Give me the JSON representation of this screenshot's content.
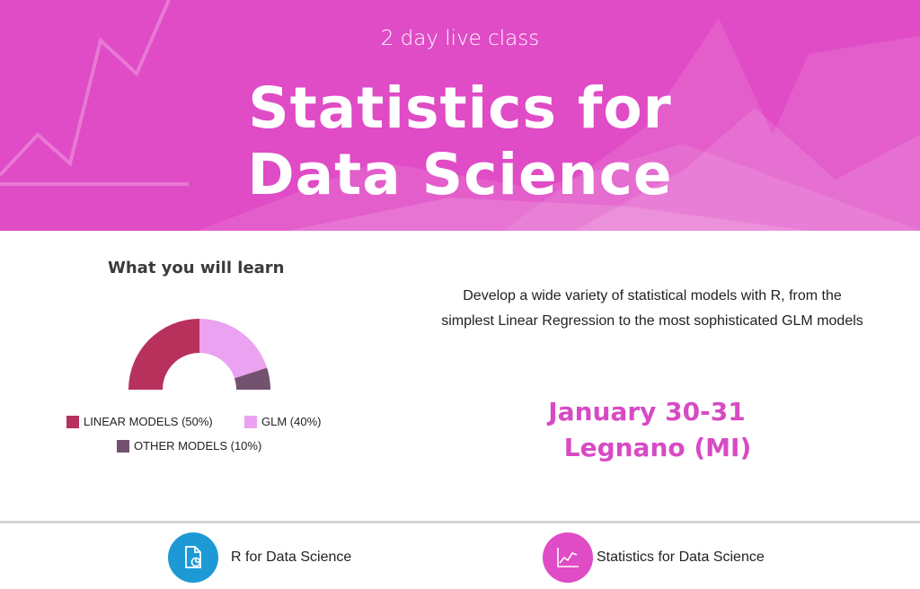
{
  "header": {
    "subtitle": "2 day live class",
    "title_line1": "Statistics for",
    "title_line2": "Data Science",
    "background_color": "#e04bc6"
  },
  "learn": {
    "heading": "What you will learn",
    "chart_data": {
      "type": "pie",
      "style": "half-donut",
      "categories": [
        "LINEAR MODELS",
        "GLM",
        "OTHER MODELS"
      ],
      "values": [
        50,
        40,
        10
      ],
      "unit": "%",
      "colors": [
        "#b8315c",
        "#eba2f0",
        "#72526f"
      ],
      "legend": [
        "LINEAR MODELS (50%)",
        "GLM (40%)",
        "OTHER MODELS (10%)"
      ],
      "legend_placement": "bottom"
    }
  },
  "description": {
    "line1": "Develop a wide variety of statistical models with R, from the",
    "line2": "simplest Linear Regression to the most sophisticated GLM models"
  },
  "event": {
    "dates": "January 30-31",
    "location": "Legnano (MI)"
  },
  "footer": {
    "links": [
      {
        "label": "R for Data Science",
        "icon": "document-chart-icon",
        "color": "#1d9ad6"
      },
      {
        "label": "Statistics for Data Science",
        "icon": "line-chart-icon",
        "color": "#e04bc6"
      }
    ]
  }
}
